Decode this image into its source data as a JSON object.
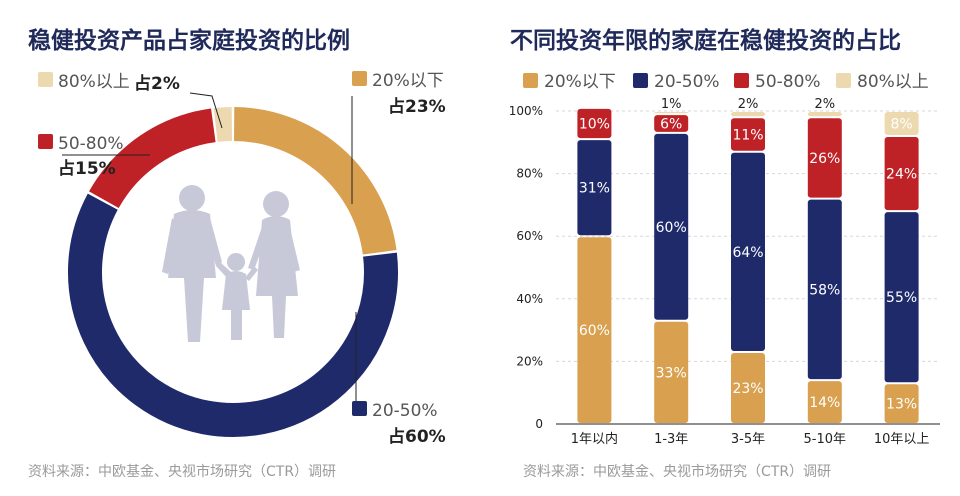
{
  "colors": {
    "gold": "#D9A04F",
    "navy": "#1F2A6B",
    "red": "#BE2126",
    "beige": "#EDD9B0",
    "figure": "#C7C9D8",
    "title": "#1F2A5A",
    "label": "#555555",
    "source": "#9A9A9A",
    "ink": "#222222",
    "grid": "#D7D7D7"
  },
  "icons": {
    "family": "family-silhouette-icon"
  },
  "chart_data": [
    {
      "type": "pie",
      "title": "稳健投资产品占家庭投资的比例",
      "source": "资料来源：中欧基金、央视市场研究（CTR）调研",
      "slices": [
        {
          "name": "20%以下",
          "value": 23,
          "label": "占23%"
        },
        {
          "name": "20-50%",
          "value": 60,
          "label": "占60%"
        },
        {
          "name": "50-80%",
          "value": 15,
          "label": "占15%"
        },
        {
          "name": "80%以上",
          "value": 2,
          "label": "占2%"
        }
      ]
    },
    {
      "type": "bar",
      "stacked": true,
      "title": "不同投资年限的家庭在稳健投资的占比",
      "source": "资料来源：中欧基金、央视市场研究（CTR）调研",
      "categories": [
        "1年以内",
        "1-3年",
        "3-5年",
        "5-10年",
        "10年以上"
      ],
      "series": [
        {
          "name": "20%以下",
          "values": [
            60,
            33,
            23,
            14,
            13
          ]
        },
        {
          "name": "20-50%",
          "values": [
            31,
            60,
            64,
            58,
            55
          ]
        },
        {
          "name": "50-80%",
          "values": [
            10,
            6,
            11,
            26,
            24
          ]
        },
        {
          "name": "80%以上",
          "values": [
            0,
            1,
            2,
            2,
            8
          ]
        }
      ],
      "value_labels": [
        [
          "60%",
          "33%",
          "23%",
          "14%",
          "13%"
        ],
        [
          "31%",
          "60%",
          "64%",
          "58%",
          "55%"
        ],
        [
          "10%",
          "6%",
          "11%",
          "26%",
          "24%"
        ],
        [
          "",
          "1%",
          "2%",
          "2%",
          "8%"
        ]
      ],
      "yticks": [
        "0",
        "20%",
        "40%",
        "60%",
        "80%",
        "100%"
      ],
      "ylim": [
        0,
        100
      ],
      "grid": true,
      "legend": "top"
    }
  ]
}
